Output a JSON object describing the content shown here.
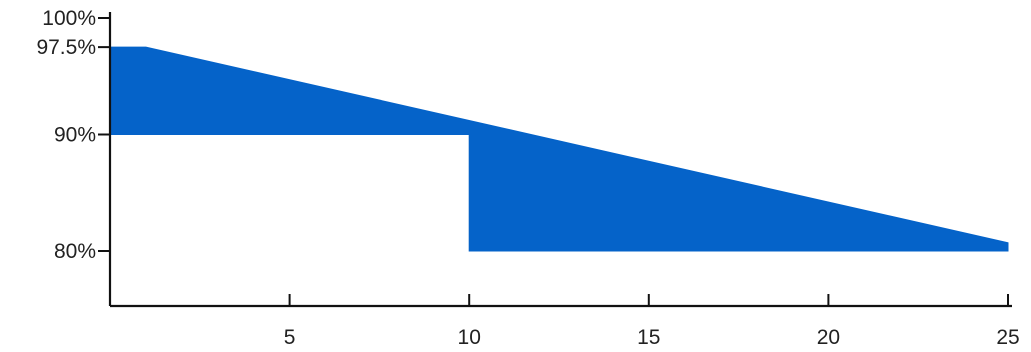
{
  "chart_data": {
    "type": "area",
    "title": "",
    "xlabel": "",
    "ylabel": "",
    "xlim": [
      0,
      25
    ],
    "ylim": [
      75,
      100
    ],
    "x_ticks": [
      {
        "value": 5,
        "label": "5"
      },
      {
        "value": 10,
        "label": "10"
      },
      {
        "value": 15,
        "label": "15"
      },
      {
        "value": 20,
        "label": "20"
      },
      {
        "value": 25,
        "label": "25"
      }
    ],
    "y_ticks": [
      {
        "value": 100,
        "label": "100%"
      },
      {
        "value": 97.5,
        "label": "97.5%"
      },
      {
        "value": 90,
        "label": "90%"
      },
      {
        "value": 80,
        "label": "80%"
      }
    ],
    "grid": false,
    "legend": "none",
    "fill_color": "#0563C9",
    "series": [
      {
        "upper": [
          {
            "x": 0,
            "y": 97.5
          },
          {
            "x": 1,
            "y": 97.5
          },
          {
            "x": 25,
            "y": 80.7
          }
        ],
        "lower": [
          {
            "x": 0,
            "y": 90
          },
          {
            "x": 10,
            "y": 90
          },
          {
            "x": 10,
            "y": 80
          },
          {
            "x": 25,
            "y": 80
          }
        ]
      }
    ]
  }
}
